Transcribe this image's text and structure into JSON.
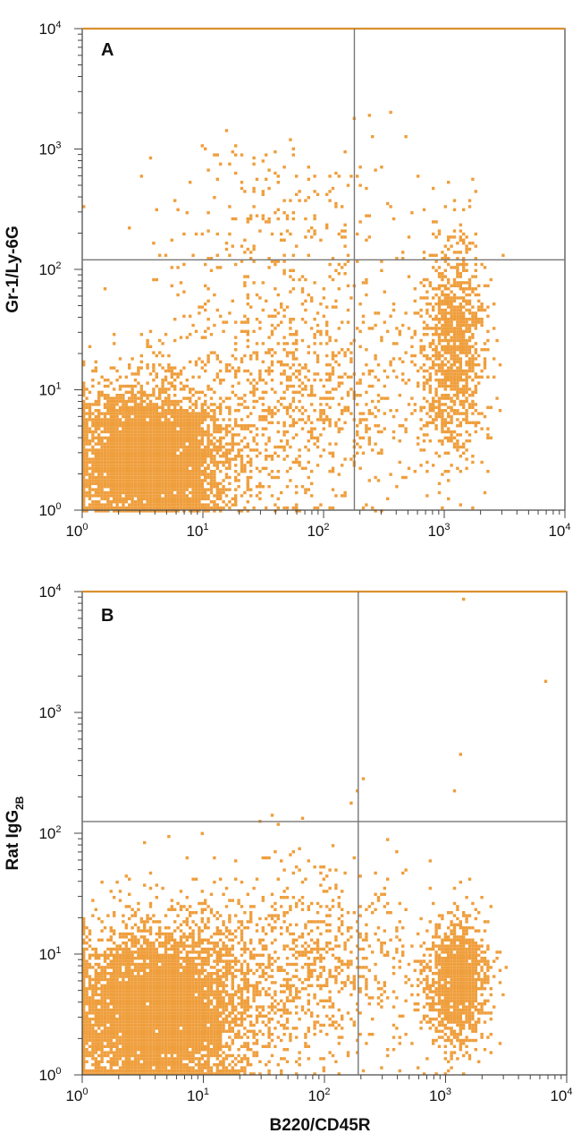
{
  "colors": {
    "dots": "#ef9e3c",
    "top_border": "#d9902e",
    "frame": "#444444",
    "gate": "#777777",
    "text": "#111111"
  },
  "chart_data": [
    {
      "type": "scatter",
      "panel_label": "A",
      "xlabel": "",
      "ylabel": "Gr-1/Ly-6G",
      "x_scale": "log",
      "y_scale": "log",
      "xlim": [
        1,
        10000
      ],
      "ylim": [
        1,
        10000
      ],
      "x_ticks": [
        {
          "base": "10",
          "exp": "0"
        },
        {
          "base": "10",
          "exp": "1"
        },
        {
          "base": "10",
          "exp": "2"
        },
        {
          "base": "10",
          "exp": "3"
        },
        {
          "base": "10",
          "exp": "4"
        }
      ],
      "y_ticks": [
        {
          "base": "10",
          "exp": "0"
        },
        {
          "base": "10",
          "exp": "1"
        },
        {
          "base": "10",
          "exp": "2"
        },
        {
          "base": "10",
          "exp": "3"
        },
        {
          "base": "10",
          "exp": "4"
        }
      ],
      "quadrant_gate": {
        "x": 180,
        "y": 120
      },
      "populations": [
        {
          "center": [
            3.5,
            2.6
          ],
          "spread_log": [
            0.32,
            0.3
          ],
          "count": 5200
        },
        {
          "center": [
            1200,
            22
          ],
          "spread_log": [
            0.13,
            0.45
          ],
          "count": 1100
        },
        {
          "center": [
            60,
            10
          ],
          "spread_log": [
            0.55,
            0.5
          ],
          "count": 1000
        },
        {
          "center": [
            40,
            260
          ],
          "spread_log": [
            0.55,
            0.35
          ],
          "count": 220
        }
      ],
      "notable_points": [
        [
          240,
          1900
        ],
        [
          360,
          2000
        ],
        [
          180,
          1800
        ]
      ]
    },
    {
      "type": "scatter",
      "panel_label": "B",
      "xlabel": "B220/CD45R",
      "ylabel_base": "Rat IgG",
      "ylabel_sub": "2B",
      "x_scale": "log",
      "y_scale": "log",
      "xlim": [
        1,
        10000
      ],
      "ylim": [
        1,
        10000
      ],
      "x_ticks": [
        {
          "base": "10",
          "exp": "0"
        },
        {
          "base": "10",
          "exp": "1"
        },
        {
          "base": "10",
          "exp": "2"
        },
        {
          "base": "10",
          "exp": "3"
        },
        {
          "base": "10",
          "exp": "4"
        }
      ],
      "y_ticks": [
        {
          "base": "10",
          "exp": "0"
        },
        {
          "base": "10",
          "exp": "1"
        },
        {
          "base": "10",
          "exp": "2"
        },
        {
          "base": "10",
          "exp": "3"
        },
        {
          "base": "10",
          "exp": "4"
        }
      ],
      "quadrant_gate": {
        "x": 190,
        "y": 125
      },
      "populations": [
        {
          "center": [
            4,
            3.2
          ],
          "spread_log": [
            0.35,
            0.32
          ],
          "count": 6200
        },
        {
          "center": [
            1250,
            6
          ],
          "spread_log": [
            0.12,
            0.25
          ],
          "count": 1300
        },
        {
          "center": [
            60,
            8
          ],
          "spread_log": [
            0.55,
            0.4
          ],
          "count": 1100
        }
      ],
      "notable_points": [
        [
          1450,
          8500
        ],
        [
          6800,
          1800
        ],
        [
          1300,
          450
        ],
        [
          1200,
          220
        ],
        [
          190,
          230
        ],
        [
          170,
          180
        ],
        [
          10,
          100
        ]
      ]
    }
  ]
}
